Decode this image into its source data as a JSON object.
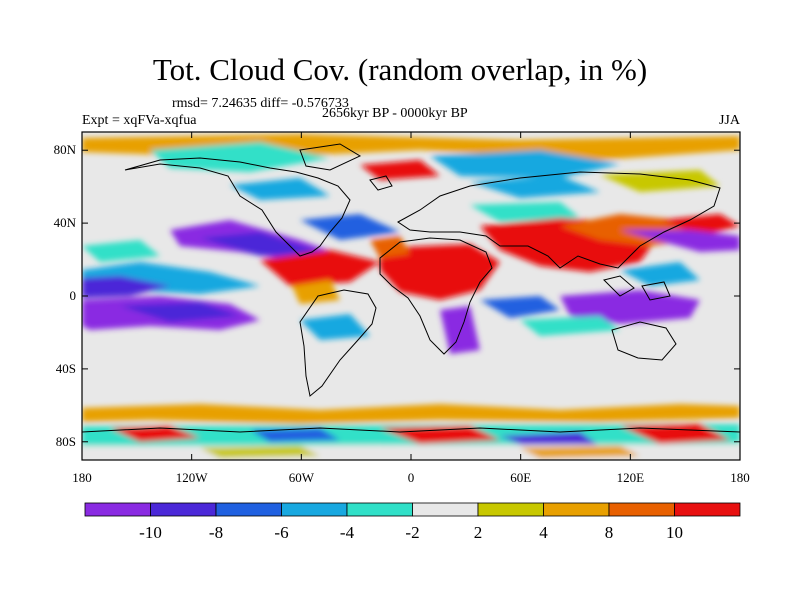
{
  "title": "Tot. Cloud Cov. (random overlap, in %)",
  "stats": "rmsd= 7.24635 diff= -0.576733",
  "period": "2656kyr BP - 0000kyr BP",
  "experiment": "Expt = xqFVa-xqfua",
  "season": "JJA",
  "lon_ticks": [
    "180",
    "120W",
    "60W",
    "0",
    "60E",
    "120E",
    "180"
  ],
  "lat_ticks": [
    "80N",
    "40N",
    "0",
    "40S",
    "80S"
  ],
  "colorbar": {
    "colors": [
      "#8a2be2",
      "#4b28d8",
      "#2060e0",
      "#18a8e0",
      "#30e0c8",
      "#e8e8e8",
      "#c8c800",
      "#e8a000",
      "#e86000",
      "#e81010"
    ],
    "labels": [
      "-10",
      "-8",
      "-6",
      "-4",
      "-2",
      "2",
      "4",
      "8",
      "10"
    ]
  }
}
